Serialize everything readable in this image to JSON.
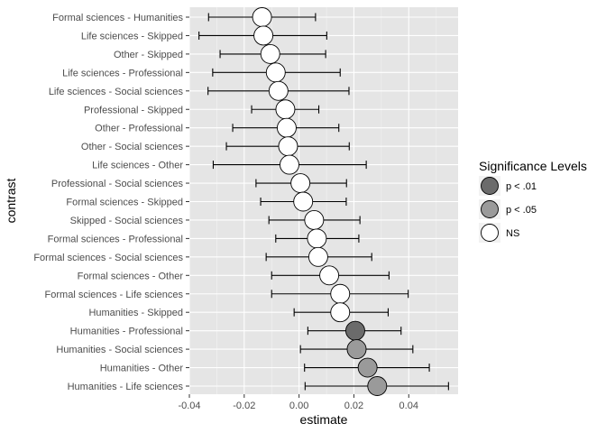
{
  "chart_data": {
    "type": "scatter",
    "subtype": "point-with-errorbars",
    "xlabel": "estimate",
    "ylabel": "contrast",
    "xlim": [
      -0.04,
      0.058
    ],
    "x_ticks": [
      "-0.04",
      "-0.02",
      "0.00",
      "0.02",
      "0.04"
    ],
    "x_tick_values": [
      -0.04,
      -0.02,
      0.0,
      0.02,
      0.04
    ],
    "grid": true,
    "panel_background": "#e5e5e5",
    "legend": {
      "title": "Significance Levels",
      "position": "right",
      "items": [
        {
          "key": "p01",
          "label": "p < .01",
          "color": "#6b6b6b"
        },
        {
          "key": "p05",
          "label": "p < .05",
          "color": "#9a9a9a"
        },
        {
          "key": "ns",
          "label": "NS",
          "color": "#ffffff"
        }
      ]
    },
    "points": [
      {
        "contrast": "Formal sciences - Humanities",
        "estimate": -0.0135,
        "lower": -0.033,
        "upper": 0.006,
        "sig": "ns"
      },
      {
        "contrast": "Life sciences - Skipped",
        "estimate": -0.013,
        "lower": -0.0365,
        "upper": 0.0101,
        "sig": "ns"
      },
      {
        "contrast": "Other - Skipped",
        "estimate": -0.0105,
        "lower": -0.0288,
        "upper": 0.0097,
        "sig": "ns"
      },
      {
        "contrast": "Life sciences - Professional",
        "estimate": -0.0085,
        "lower": -0.0315,
        "upper": 0.015,
        "sig": "ns"
      },
      {
        "contrast": "Life sciences - Social sciences",
        "estimate": -0.0075,
        "lower": -0.0332,
        "upper": 0.0182,
        "sig": "ns"
      },
      {
        "contrast": "Professional - Skipped",
        "estimate": -0.005,
        "lower": -0.0173,
        "upper": 0.0072,
        "sig": "ns"
      },
      {
        "contrast": "Other - Professional",
        "estimate": -0.0045,
        "lower": -0.0242,
        "upper": 0.0145,
        "sig": "ns"
      },
      {
        "contrast": "Other - Social sciences",
        "estimate": -0.004,
        "lower": -0.0265,
        "upper": 0.0183,
        "sig": "ns"
      },
      {
        "contrast": "Life sciences - Other",
        "estimate": -0.0035,
        "lower": -0.0313,
        "upper": 0.0245,
        "sig": "ns"
      },
      {
        "contrast": "Professional - Social sciences",
        "estimate": 0.0005,
        "lower": -0.0157,
        "upper": 0.0173,
        "sig": "ns"
      },
      {
        "contrast": "Formal sciences - Skipped",
        "estimate": 0.0015,
        "lower": -0.014,
        "upper": 0.0172,
        "sig": "ns"
      },
      {
        "contrast": "Skipped - Social sciences",
        "estimate": 0.0055,
        "lower": -0.011,
        "upper": 0.0222,
        "sig": "ns"
      },
      {
        "contrast": "Formal sciences - Professional",
        "estimate": 0.0065,
        "lower": -0.0085,
        "upper": 0.0218,
        "sig": "ns"
      },
      {
        "contrast": "Formal sciences - Social sciences",
        "estimate": 0.007,
        "lower": -0.012,
        "upper": 0.0265,
        "sig": "ns"
      },
      {
        "contrast": "Formal sciences - Other",
        "estimate": 0.011,
        "lower": -0.01,
        "upper": 0.0328,
        "sig": "ns"
      },
      {
        "contrast": "Formal sciences - Life sciences",
        "estimate": 0.015,
        "lower": -0.01,
        "upper": 0.0398,
        "sig": "ns"
      },
      {
        "contrast": "Humanities - Skipped",
        "estimate": 0.015,
        "lower": -0.0018,
        "upper": 0.0325,
        "sig": "ns"
      },
      {
        "contrast": "Humanities - Professional",
        "estimate": 0.0205,
        "lower": 0.0032,
        "upper": 0.0372,
        "sig": "p01"
      },
      {
        "contrast": "Humanities - Social sciences",
        "estimate": 0.021,
        "lower": 0.0005,
        "upper": 0.0415,
        "sig": "p05"
      },
      {
        "contrast": "Humanities - Other",
        "estimate": 0.025,
        "lower": 0.002,
        "upper": 0.0475,
        "sig": "p05"
      },
      {
        "contrast": "Humanities - Life sciences",
        "estimate": 0.0285,
        "lower": 0.0022,
        "upper": 0.0545,
        "sig": "p05"
      }
    ]
  }
}
